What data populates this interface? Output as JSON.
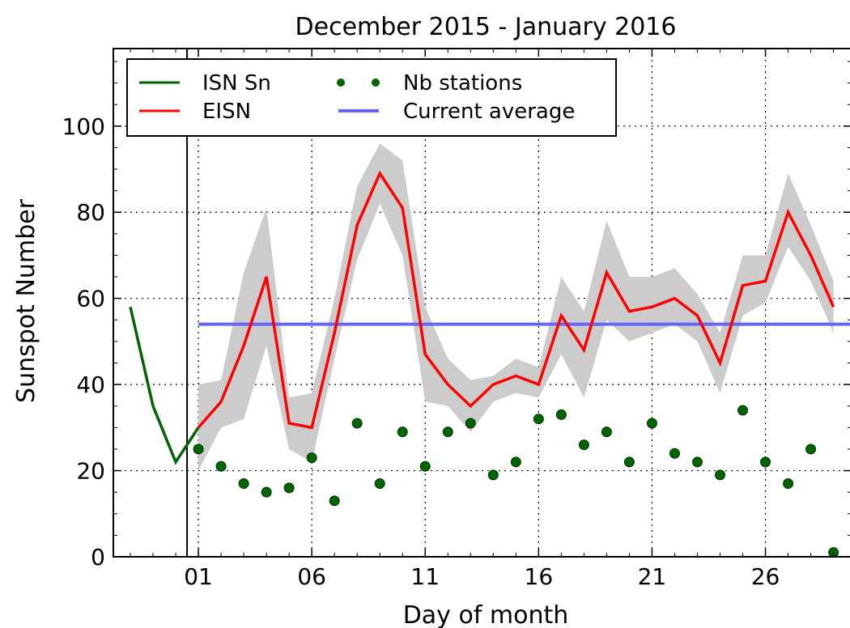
{
  "chart_data": {
    "type": "line",
    "title": "December 2015 - January 2016",
    "xlabel": "Day of month",
    "ylabel": "Sunspot Number",
    "xlim": [
      -2.75,
      29.8
    ],
    "ylim": [
      0,
      118
    ],
    "x_ticks": [
      1,
      6,
      11,
      16,
      21,
      26
    ],
    "x_tick_labels": [
      "01",
      "06",
      "11",
      "16",
      "21",
      "26"
    ],
    "y_ticks": [
      0,
      20,
      40,
      60,
      80,
      100
    ],
    "y_tick_labels": [
      "0",
      "20",
      "40",
      "60",
      "80",
      "100"
    ],
    "grid": true,
    "month_boundary_x": 0.5,
    "legend": {
      "placement": "top-left",
      "entries": [
        "ISN Sn",
        "Nb stations",
        "EISN",
        "Current average"
      ]
    },
    "series": [
      {
        "name": "ISN Sn",
        "kind": "line",
        "color": "#006400",
        "x": [
          -2,
          -1,
          0,
          1
        ],
        "y": [
          58,
          35,
          22,
          30
        ]
      },
      {
        "name": "EISN",
        "kind": "line",
        "color": "#ff0000",
        "x": [
          1,
          2,
          3,
          4,
          5,
          6,
          7,
          8,
          9,
          10,
          11,
          12,
          13,
          14,
          15,
          16,
          17,
          18,
          19,
          20,
          21,
          22,
          23,
          24,
          25,
          26,
          27,
          28,
          29
        ],
        "y": [
          30,
          36,
          49,
          65,
          31,
          30,
          52,
          77,
          89,
          81,
          47,
          40,
          35,
          40,
          42,
          40,
          56,
          48,
          66,
          57,
          58,
          60,
          56,
          45,
          63,
          64,
          80,
          70,
          58
        ],
        "band_low": [
          20,
          30,
          32,
          49,
          25,
          22,
          46,
          69,
          82,
          70,
          36,
          35,
          29,
          36,
          38,
          37,
          47,
          37,
          55,
          50,
          52,
          54,
          50,
          38,
          56,
          59,
          72,
          64,
          52
        ],
        "band_high": [
          40,
          41,
          66,
          81,
          37,
          38,
          60,
          86,
          96,
          92,
          58,
          46,
          41,
          42,
          46,
          44,
          65,
          57,
          78,
          65,
          65,
          67,
          61,
          52,
          70,
          70,
          89,
          77,
          64
        ]
      },
      {
        "name": "Nb stations",
        "kind": "scatter",
        "color": "#006400",
        "x": [
          1,
          2,
          3,
          4,
          5,
          6,
          7,
          8,
          9,
          10,
          11,
          12,
          13,
          14,
          15,
          16,
          17,
          18,
          19,
          20,
          21,
          22,
          23,
          24,
          25,
          26,
          27,
          28,
          29
        ],
        "y": [
          25,
          21,
          17,
          15,
          16,
          23,
          13,
          31,
          17,
          29,
          21,
          29,
          31,
          19,
          22,
          32,
          33,
          26,
          29,
          22,
          31,
          24,
          22,
          19,
          34,
          22,
          17,
          25,
          1
        ]
      },
      {
        "name": "Current average",
        "kind": "hline",
        "color": "#6666ff",
        "y": 54
      }
    ]
  }
}
